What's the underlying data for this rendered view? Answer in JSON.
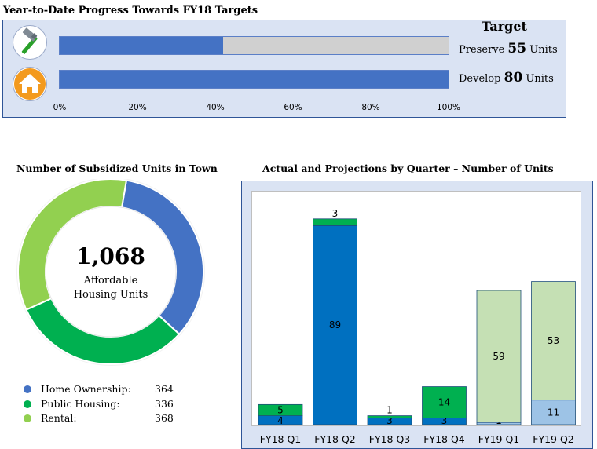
{
  "progress": {
    "title": "Year-to-Date Progress Towards FY18 Targets",
    "target_header": "Target",
    "ticks": [
      "0%",
      "20%",
      "40%",
      "60%",
      "80%",
      "100%"
    ],
    "rows": [
      {
        "icon": "hammer-icon",
        "verb": "Preserve",
        "target": "55",
        "unit": "Units",
        "progress": 0.42
      },
      {
        "icon": "house-icon",
        "verb": "Develop",
        "target": "80",
        "unit": "Units",
        "progress": 1.0
      }
    ],
    "colors": {
      "fill": "#4472c4",
      "track": "#d0d0d0"
    }
  },
  "donut": {
    "title": "Number of Subsidized Units in Town",
    "total": "1,068",
    "center_line1": "Affordable",
    "center_line2": "Housing Units",
    "legend": [
      {
        "label": "Home Ownership:",
        "value": "364",
        "color": "#4472c4"
      },
      {
        "label": "Public Housing:",
        "value": "336",
        "color": "#00b050"
      },
      {
        "label": "Rental:",
        "value": "368",
        "color": "#92d050"
      }
    ]
  },
  "chart_data": [
    {
      "type": "pie",
      "title": "Number of Subsidized Units in Town",
      "labels": [
        "Home Ownership",
        "Public Housing",
        "Rental"
      ],
      "values": [
        364,
        336,
        368
      ],
      "colors": [
        "#4472c4",
        "#00b050",
        "#92d050"
      ]
    },
    {
      "type": "bar",
      "stacked": true,
      "title": "Actual and Projections by Quarter – Number of Units",
      "categories": [
        "FY18 Q1",
        "FY18 Q2",
        "FY18 Q3",
        "FY18 Q4",
        "FY19 Q1",
        "FY19 Q2"
      ],
      "ylim": [
        0,
        100
      ],
      "bars": [
        {
          "segments": [
            {
              "value": 4,
              "color": "#0070c0"
            },
            {
              "value": 5,
              "color": "#00b050"
            }
          ]
        },
        {
          "segments": [
            {
              "value": 89,
              "color": "#0070c0"
            },
            {
              "value": 3,
              "color": "#00b050"
            }
          ]
        },
        {
          "segments": [
            {
              "value": 3,
              "color": "#0070c0"
            },
            {
              "value": 1,
              "color": "#00b050"
            }
          ]
        },
        {
          "segments": [
            {
              "value": 3,
              "color": "#0070c0"
            },
            {
              "value": 14,
              "color": "#00b050"
            }
          ]
        },
        {
          "segments": [
            {
              "value": 1,
              "color": "#9dc3e6"
            },
            {
              "value": 59,
              "color": "#c5e0b4"
            }
          ]
        },
        {
          "segments": [
            {
              "value": 11,
              "color": "#9dc3e6"
            },
            {
              "value": 53,
              "color": "#c5e0b4"
            }
          ]
        }
      ]
    }
  ]
}
